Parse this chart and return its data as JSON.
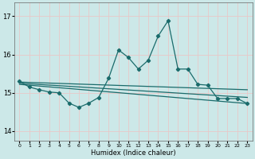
{
  "xlabel": "Humidex (Indice chaleur)",
  "bg_color": "#cce8e8",
  "grid_color": "#e8c8c8",
  "line_color": "#1a6b6b",
  "xlim": [
    -0.5,
    23.5
  ],
  "ylim": [
    13.75,
    17.35
  ],
  "yticks": [
    14,
    15,
    16,
    17
  ],
  "xticks": [
    0,
    1,
    2,
    3,
    4,
    5,
    6,
    7,
    8,
    9,
    10,
    11,
    12,
    13,
    14,
    15,
    16,
    17,
    18,
    19,
    20,
    21,
    22,
    23
  ],
  "trend1_x": [
    0,
    23
  ],
  "trend1_y": [
    15.28,
    15.08
  ],
  "trend2_x": [
    0,
    23
  ],
  "trend2_y": [
    15.25,
    14.88
  ],
  "trend3_x": [
    0,
    23
  ],
  "trend3_y": [
    15.22,
    14.72
  ],
  "volatile_x": [
    0,
    1,
    2,
    3,
    4,
    5,
    6,
    7,
    8,
    9,
    10,
    11,
    12,
    13,
    14,
    15,
    16,
    17,
    18,
    19,
    20,
    21,
    22,
    23
  ],
  "volatile_y": [
    15.3,
    15.15,
    15.08,
    15.02,
    15.0,
    14.73,
    14.62,
    14.73,
    14.88,
    15.38,
    16.12,
    15.92,
    15.62,
    15.85,
    16.48,
    16.88,
    15.62,
    15.62,
    15.22,
    15.2,
    14.85,
    14.85,
    14.85,
    14.72
  ]
}
